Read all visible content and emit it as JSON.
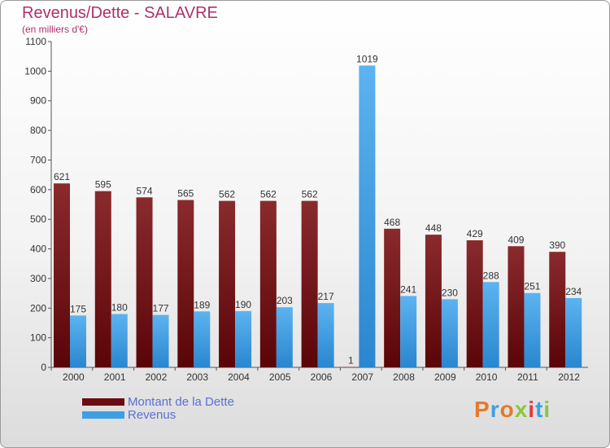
{
  "title": "Revenus/Dette - SALAVRE",
  "subtitle": "(en milliers d'€)",
  "colors": {
    "dette": "#7a1518",
    "revenus": "#3d9fe4",
    "title": "#b0306a",
    "legend_text": "#5b6fd6"
  },
  "legend": [
    {
      "label": "Montant de la Dette",
      "color": "#6b0c10"
    },
    {
      "label": "Revenus",
      "color": "#3d9fe4"
    }
  ],
  "logo": {
    "text": "Proxiti"
  },
  "chart_data": {
    "type": "bar",
    "title": "Revenus/Dette - SALAVRE",
    "categories": [
      "2000",
      "2001",
      "2002",
      "2003",
      "2004",
      "2005",
      "2006",
      "2007",
      "2008",
      "2009",
      "2010",
      "2011",
      "2012"
    ],
    "series": [
      {
        "name": "Montant de la Dette",
        "values": [
          621,
          595,
          574,
          565,
          562,
          562,
          562,
          1,
          468,
          448,
          429,
          409,
          390
        ]
      },
      {
        "name": "Revenus",
        "values": [
          175,
          180,
          177,
          189,
          190,
          203,
          217,
          1019,
          241,
          230,
          288,
          251,
          234
        ]
      }
    ],
    "yticks": [
      0,
      100,
      200,
      300,
      400,
      500,
      600,
      700,
      800,
      900,
      1000,
      1100
    ],
    "ylim": [
      0,
      1100
    ],
    "grid": false,
    "legend_position": "bottom-left"
  }
}
